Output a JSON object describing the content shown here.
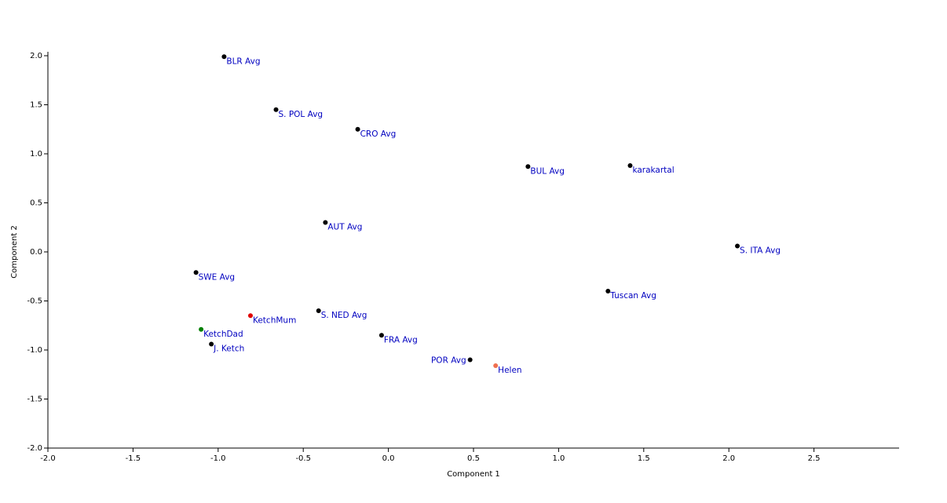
{
  "chart_data": {
    "type": "scatter",
    "x_label": "Component 1",
    "y_label": "Component 2",
    "labels": [
      "BLR Avg",
      "S. POL Avg",
      "CRO Avg",
      "BUL Avg",
      "karakartal",
      "AUT Avg",
      "S. ITA Avg",
      "SWE Avg",
      "Tuscan Avg",
      "S. NED Avg",
      "KetchMum",
      "KetchDad",
      "J. Ketch",
      "FRA Avg",
      "POR Avg",
      "Helen"
    ],
    "x": [
      -0.965,
      -0.66,
      -0.18,
      0.82,
      1.42,
      -0.37,
      2.05,
      -1.13,
      1.29,
      -0.41,
      -0.81,
      -1.1,
      -1.04,
      -0.04,
      0.48,
      0.63
    ],
    "values": [
      1.99,
      1.45,
      1.25,
      0.87,
      0.88,
      0.3,
      0.06,
      -0.21,
      -0.4,
      -0.6,
      -0.65,
      -0.79,
      -0.94,
      -0.85,
      -1.1,
      -1.16
    ],
    "colors": [
      "#000000",
      "#000000",
      "#000000",
      "#000000",
      "#000000",
      "#000000",
      "#000000",
      "#000000",
      "#000000",
      "#000000",
      "#e00000",
      "#008000",
      "#000000",
      "#000000",
      "#000000",
      "#f07050"
    ],
    "label_color": "#0000c0",
    "xlim": [
      -2,
      3
    ],
    "ylim": [
      -2,
      2
    ],
    "xticks": [
      {
        "value": -2,
        "label": "-2.0"
      },
      {
        "value": -1.5,
        "label": "-1.5"
      },
      {
        "value": -1,
        "label": "-1.0"
      },
      {
        "value": -0.5,
        "label": "-0.5"
      },
      {
        "value": 0,
        "label": "0.0"
      },
      0.5,
      {
        "value": 1,
        "label": "1.0"
      },
      1.5,
      {
        "value": 2,
        "label": "2.0"
      },
      2.5
    ],
    "yticks": [
      {
        "value": -2,
        "label": "-2.0"
      },
      {
        "value": -1.5,
        "label": "-1.5"
      },
      {
        "value": -1,
        "label": "-1.0"
      },
      {
        "value": -0.5,
        "label": "-0.5"
      },
      {
        "value": 0,
        "label": "0.0"
      },
      0.5,
      {
        "value": 1,
        "label": "1.0"
      },
      1.5,
      {
        "value": 2,
        "label": "2.0"
      }
    ]
  }
}
